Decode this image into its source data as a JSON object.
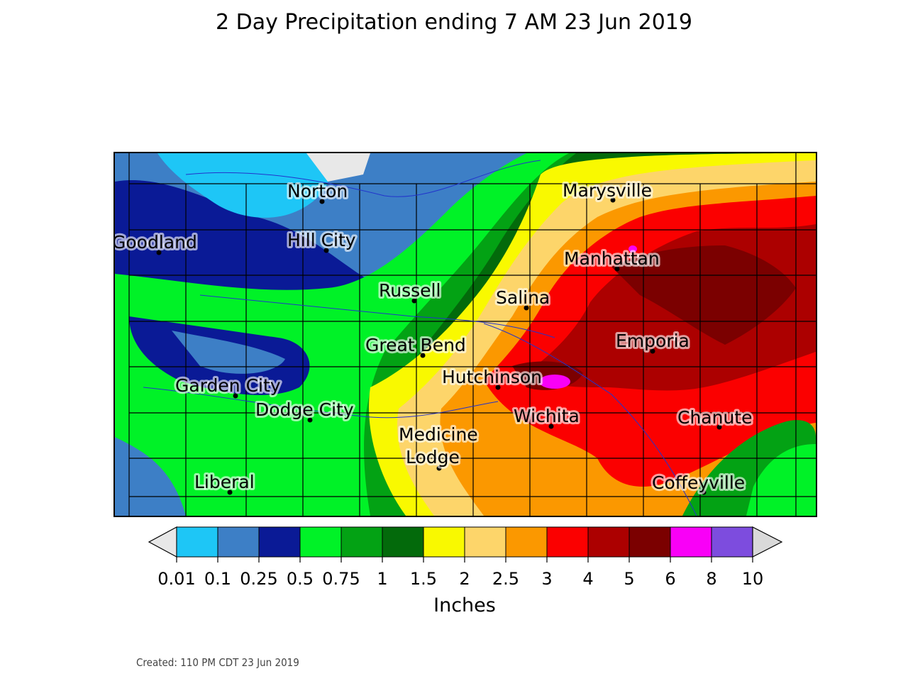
{
  "title": "2 Day Precipitation ending 7 AM 23 Jun 2019",
  "units_label": "Inches",
  "created": "Created: 110 PM CDT 23 Jun 2019",
  "cities": [
    {
      "id": "norton",
      "name": "Norton"
    },
    {
      "id": "goodland",
      "name": "Goodland"
    },
    {
      "id": "hill-city",
      "name": "Hill City"
    },
    {
      "id": "marysville",
      "name": "Marysville"
    },
    {
      "id": "manhattan",
      "name": "Manhattan"
    },
    {
      "id": "russell",
      "name": "Russell"
    },
    {
      "id": "salina",
      "name": "Salina"
    },
    {
      "id": "great-bend",
      "name": "Great Bend"
    },
    {
      "id": "emporia",
      "name": "Emporia"
    },
    {
      "id": "hutchinson",
      "name": "Hutchinson"
    },
    {
      "id": "garden-city",
      "name": "Garden City"
    },
    {
      "id": "dodge-city",
      "name": "Dodge City"
    },
    {
      "id": "wichita",
      "name": "Wichita"
    },
    {
      "id": "chanute",
      "name": "Chanute"
    },
    {
      "id": "medicine-lodge",
      "name": "Medicine\nLodge"
    },
    {
      "id": "liberal",
      "name": "Liberal"
    },
    {
      "id": "coffeyville",
      "name": "Coffeyville"
    }
  ],
  "legend": {
    "under_color": "#e8e8e8",
    "over_color": "#d9d9d9",
    "colors": [
      "#1ec6f6",
      "#3d7fc6",
      "#0a1a96",
      "#00f227",
      "#03a214",
      "#036a0b",
      "#f9f900",
      "#fdd56a",
      "#fb9800",
      "#fb0000",
      "#ac0000",
      "#7b0000",
      "#f900f7",
      "#7d4cde"
    ],
    "ticks": [
      "0.01",
      "0.1",
      "0.25",
      "0.5",
      "0.75",
      "1",
      "1.5",
      "2",
      "2.5",
      "3",
      "4",
      "5",
      "6",
      "8",
      "10"
    ]
  }
}
